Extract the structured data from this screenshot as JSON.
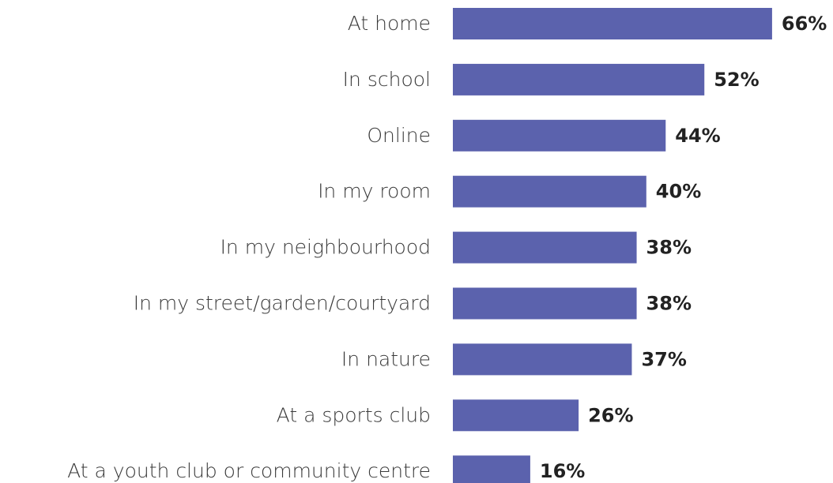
{
  "chart_data": {
    "type": "bar",
    "orientation": "horizontal",
    "categories": [
      "At home",
      "In school",
      "Online",
      "In my room",
      "In my neighbourhood",
      "In my street/garden/courtyard",
      "In nature",
      "At a sports club",
      "At a youth club or community centre"
    ],
    "values": [
      66,
      52,
      44,
      40,
      38,
      38,
      37,
      26,
      16
    ],
    "value_labels": [
      "66%",
      "52%",
      "44%",
      "40%",
      "38%",
      "38%",
      "37%",
      "26%",
      "16%"
    ],
    "color": "#5b62ad"
  }
}
